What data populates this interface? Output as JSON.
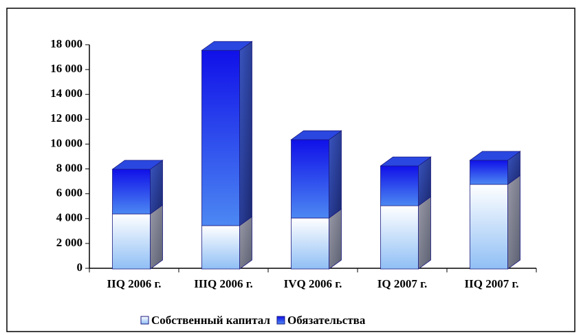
{
  "chart_data": {
    "type": "bar3d_stacked",
    "categories": [
      "IIQ 2006 г.",
      "IIIQ 2006 г.",
      "IVQ 2006 г.",
      "IQ 2007 г.",
      "IIQ 2007 г."
    ],
    "series": [
      {
        "name": "Собственный капитал",
        "color": "#a8c8f8",
        "values": [
          4430,
          3490,
          4100,
          5090,
          6810
        ]
      },
      {
        "name": "Обязательства",
        "color": "#1a2cf0",
        "values": [
          3600,
          14110,
          6310,
          3210,
          1940
        ]
      }
    ],
    "ylim": [
      0,
      18000
    ],
    "yticks": [
      0,
      {
        "value": 2000,
        "label": "2 000"
      },
      {
        "value": 4000,
        "label": "4 000"
      },
      {
        "value": 6000,
        "label": "6 000"
      },
      {
        "value": 8000,
        "label": "8 000"
      },
      {
        "value": 10000,
        "label": "10 000"
      },
      {
        "value": 12000,
        "label": "12 000"
      },
      {
        "value": 14000,
        "label": "14 000"
      },
      {
        "value": 16000,
        "label": "16 000"
      },
      {
        "value": 18000,
        "label": "18 000"
      }
    ],
    "legend": "bottom"
  }
}
